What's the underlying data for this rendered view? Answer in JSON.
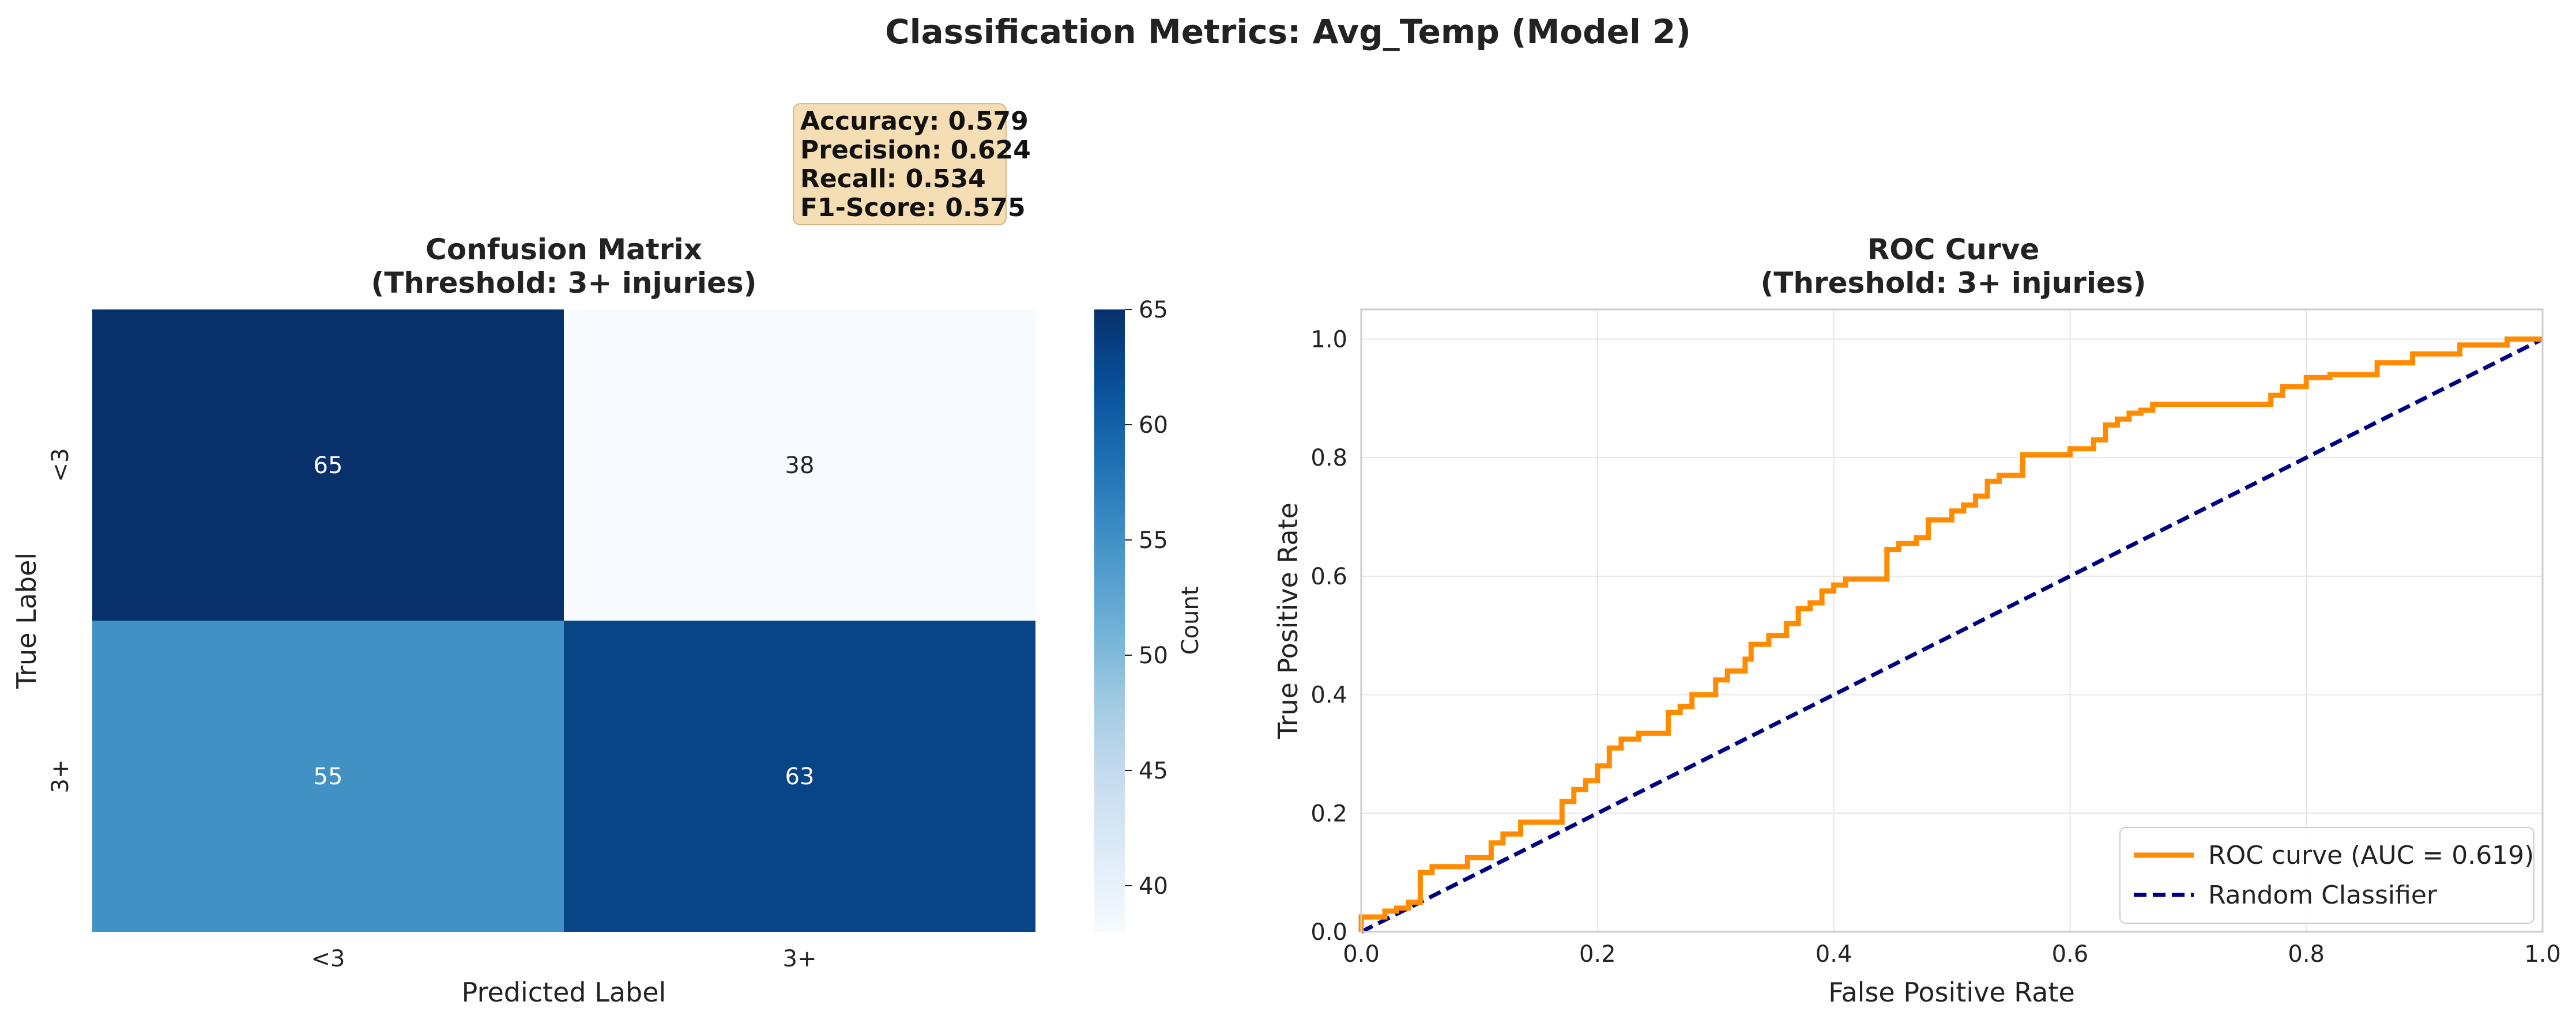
{
  "figure": {
    "suptitle": "Classification Metrics: Avg_Temp (Model 2)"
  },
  "metrics_box": {
    "lines": [
      "Accuracy: 0.579",
      "Precision: 0.624",
      "Recall: 0.534",
      "F1-Score: 0.575"
    ],
    "background": "#f5deb3"
  },
  "chart_data": [
    {
      "type": "heatmap",
      "title": "Confusion Matrix\n(Threshold: 3+ injuries)",
      "title_lines": [
        "Confusion Matrix",
        "(Threshold: 3+ injuries)"
      ],
      "xlabel": "Predicted Label",
      "ylabel": "True Label",
      "x_categories": [
        "<3",
        "3+"
      ],
      "y_categories": [
        "<3",
        "3+"
      ],
      "values": [
        [
          65,
          38
        ],
        [
          55,
          63
        ]
      ],
      "colormap": "Blues",
      "colorbar": {
        "label": "Count",
        "range": [
          38,
          65
        ],
        "ticks": [
          40,
          45,
          50,
          55,
          60,
          65
        ]
      }
    },
    {
      "type": "line",
      "title": "ROC Curve\n(Threshold: 3+ injuries)",
      "title_lines": [
        "ROC Curve",
        "(Threshold: 3+ injuries)"
      ],
      "xlabel": "False Positive Rate",
      "ylabel": "True Positive Rate",
      "xlim": [
        0.0,
        1.0
      ],
      "ylim": [
        0.0,
        1.05
      ],
      "xticks": [
        "0.0",
        "0.2",
        "0.4",
        "0.6",
        "0.8",
        "1.0"
      ],
      "yticks": [
        "0.0",
        "0.2",
        "0.4",
        "0.6",
        "0.8",
        "1.0"
      ],
      "grid": true,
      "legend_position": "lower-right",
      "series": [
        {
          "name": "ROC curve (AUC = 0.619)",
          "color": "#ff8c00",
          "style": "solid",
          "x": [
            0.0,
            0.0,
            0.02,
            0.02,
            0.03,
            0.03,
            0.04,
            0.04,
            0.05,
            0.05,
            0.06,
            0.06,
            0.09,
            0.09,
            0.11,
            0.11,
            0.12,
            0.12,
            0.135,
            0.135,
            0.17,
            0.17,
            0.18,
            0.18,
            0.19,
            0.19,
            0.2,
            0.2,
            0.21,
            0.21,
            0.22,
            0.22,
            0.235,
            0.235,
            0.26,
            0.26,
            0.27,
            0.27,
            0.28,
            0.28,
            0.3,
            0.3,
            0.31,
            0.31,
            0.325,
            0.325,
            0.33,
            0.33,
            0.345,
            0.345,
            0.36,
            0.36,
            0.37,
            0.37,
            0.38,
            0.38,
            0.39,
            0.39,
            0.4,
            0.4,
            0.41,
            0.41,
            0.445,
            0.445,
            0.455,
            0.455,
            0.47,
            0.47,
            0.48,
            0.48,
            0.5,
            0.5,
            0.51,
            0.51,
            0.52,
            0.52,
            0.53,
            0.53,
            0.54,
            0.54,
            0.56,
            0.56,
            0.6,
            0.6,
            0.62,
            0.62,
            0.63,
            0.63,
            0.64,
            0.64,
            0.65,
            0.65,
            0.66,
            0.66,
            0.67,
            0.67,
            0.68,
            0.68,
            0.77,
            0.77,
            0.78,
            0.78,
            0.8,
            0.8,
            0.82,
            0.82,
            0.86,
            0.86,
            0.89,
            0.89,
            0.93,
            0.93,
            0.97,
            0.97,
            1.0
          ],
          "y": [
            0.0,
            0.025,
            0.025,
            0.035,
            0.035,
            0.04,
            0.04,
            0.05,
            0.05,
            0.1,
            0.1,
            0.11,
            0.11,
            0.125,
            0.125,
            0.15,
            0.15,
            0.165,
            0.165,
            0.185,
            0.185,
            0.22,
            0.22,
            0.24,
            0.24,
            0.255,
            0.255,
            0.28,
            0.28,
            0.31,
            0.31,
            0.325,
            0.325,
            0.335,
            0.335,
            0.37,
            0.37,
            0.38,
            0.38,
            0.4,
            0.4,
            0.425,
            0.425,
            0.44,
            0.44,
            0.46,
            0.46,
            0.485,
            0.485,
            0.5,
            0.5,
            0.52,
            0.52,
            0.545,
            0.545,
            0.555,
            0.555,
            0.575,
            0.575,
            0.585,
            0.585,
            0.595,
            0.595,
            0.645,
            0.645,
            0.655,
            0.655,
            0.665,
            0.665,
            0.695,
            0.695,
            0.71,
            0.71,
            0.72,
            0.72,
            0.735,
            0.735,
            0.76,
            0.76,
            0.77,
            0.77,
            0.805,
            0.805,
            0.815,
            0.815,
            0.83,
            0.83,
            0.855,
            0.855,
            0.865,
            0.865,
            0.875,
            0.875,
            0.88,
            0.88,
            0.89,
            0.89,
            0.89,
            0.89,
            0.905,
            0.905,
            0.92,
            0.92,
            0.935,
            0.935,
            0.94,
            0.94,
            0.96,
            0.96,
            0.975,
            0.975,
            0.99,
            0.99,
            1.0,
            1.0
          ]
        },
        {
          "name": "Random Classifier",
          "color": "#000080",
          "style": "dashed",
          "x": [
            0.0,
            1.0
          ],
          "y": [
            0.0,
            1.0
          ]
        }
      ]
    }
  ]
}
